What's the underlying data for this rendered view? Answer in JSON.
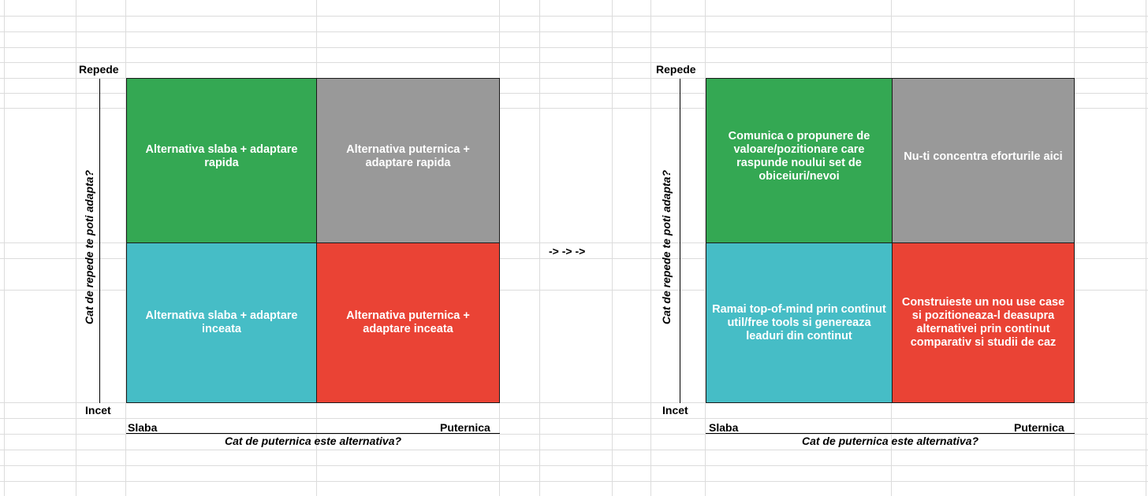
{
  "colors": {
    "green": "#34a853",
    "gray": "#999999",
    "teal": "#46bdc6",
    "red": "#ea4335"
  },
  "arrow_text": "-> -> ->",
  "left_matrix": {
    "y_top_label": "Repede",
    "y_bottom_label": "Incet",
    "y_axis_title": "Cat de repede te poti adapta?",
    "x_left_label": "Slaba",
    "x_right_label": "Puternica",
    "x_axis_title": "Cat de puternica este alternativa?",
    "cells": {
      "top_left": "Alternativa slaba + adaptare rapida",
      "top_right": "Alternativa puternica + adaptare rapida",
      "bottom_left": "Alternativa slaba + adaptare inceata",
      "bottom_right": "Alternativa puternica + adaptare inceata"
    }
  },
  "right_matrix": {
    "y_top_label": "Repede",
    "y_bottom_label": "Incet",
    "y_axis_title": "Cat de repede te poti adapta?",
    "x_left_label": "Slaba",
    "x_right_label": "Puternica",
    "x_axis_title": "Cat de puternica este alternativa?",
    "cells": {
      "top_left": "Comunica o propunere de valoare/pozitionare care raspunde noului set de obiceiuri/nevoi",
      "top_right": "Nu-ti concentra eforturile aici",
      "bottom_left": "Ramai top-of-mind prin continut util/free tools si genereaza leaduri din continut",
      "bottom_right": "Construieste un nou use case si pozitioneaza-l deasupra alternativei prin continut comparativ si studii de caz"
    }
  }
}
